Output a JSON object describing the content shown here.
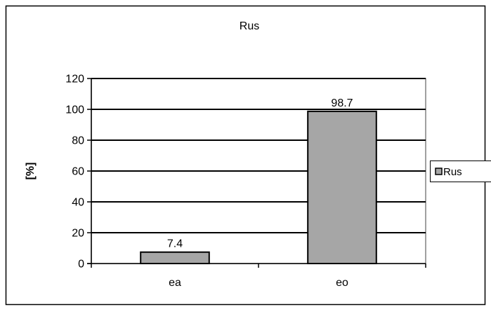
{
  "chart_data": {
    "type": "bar",
    "title": "Rus",
    "xlabel": "",
    "ylabel": "[%]",
    "categories": [
      "ea",
      "eo"
    ],
    "series": [
      {
        "name": "Rus",
        "values": [
          7.4,
          98.7
        ],
        "labels": [
          "7.4",
          "98.7"
        ]
      }
    ],
    "ylim": [
      0,
      120
    ],
    "yticks": [
      0,
      20,
      40,
      60,
      80,
      100,
      120
    ],
    "grid": true,
    "legend": "right",
    "colors": {
      "bar_fill": "#a6a6a6",
      "bar_stroke": "#000000",
      "plot_background": "#ffffff",
      "gridline": "#000000",
      "plot_border": "#808080",
      "outer_border": "#000000"
    }
  }
}
